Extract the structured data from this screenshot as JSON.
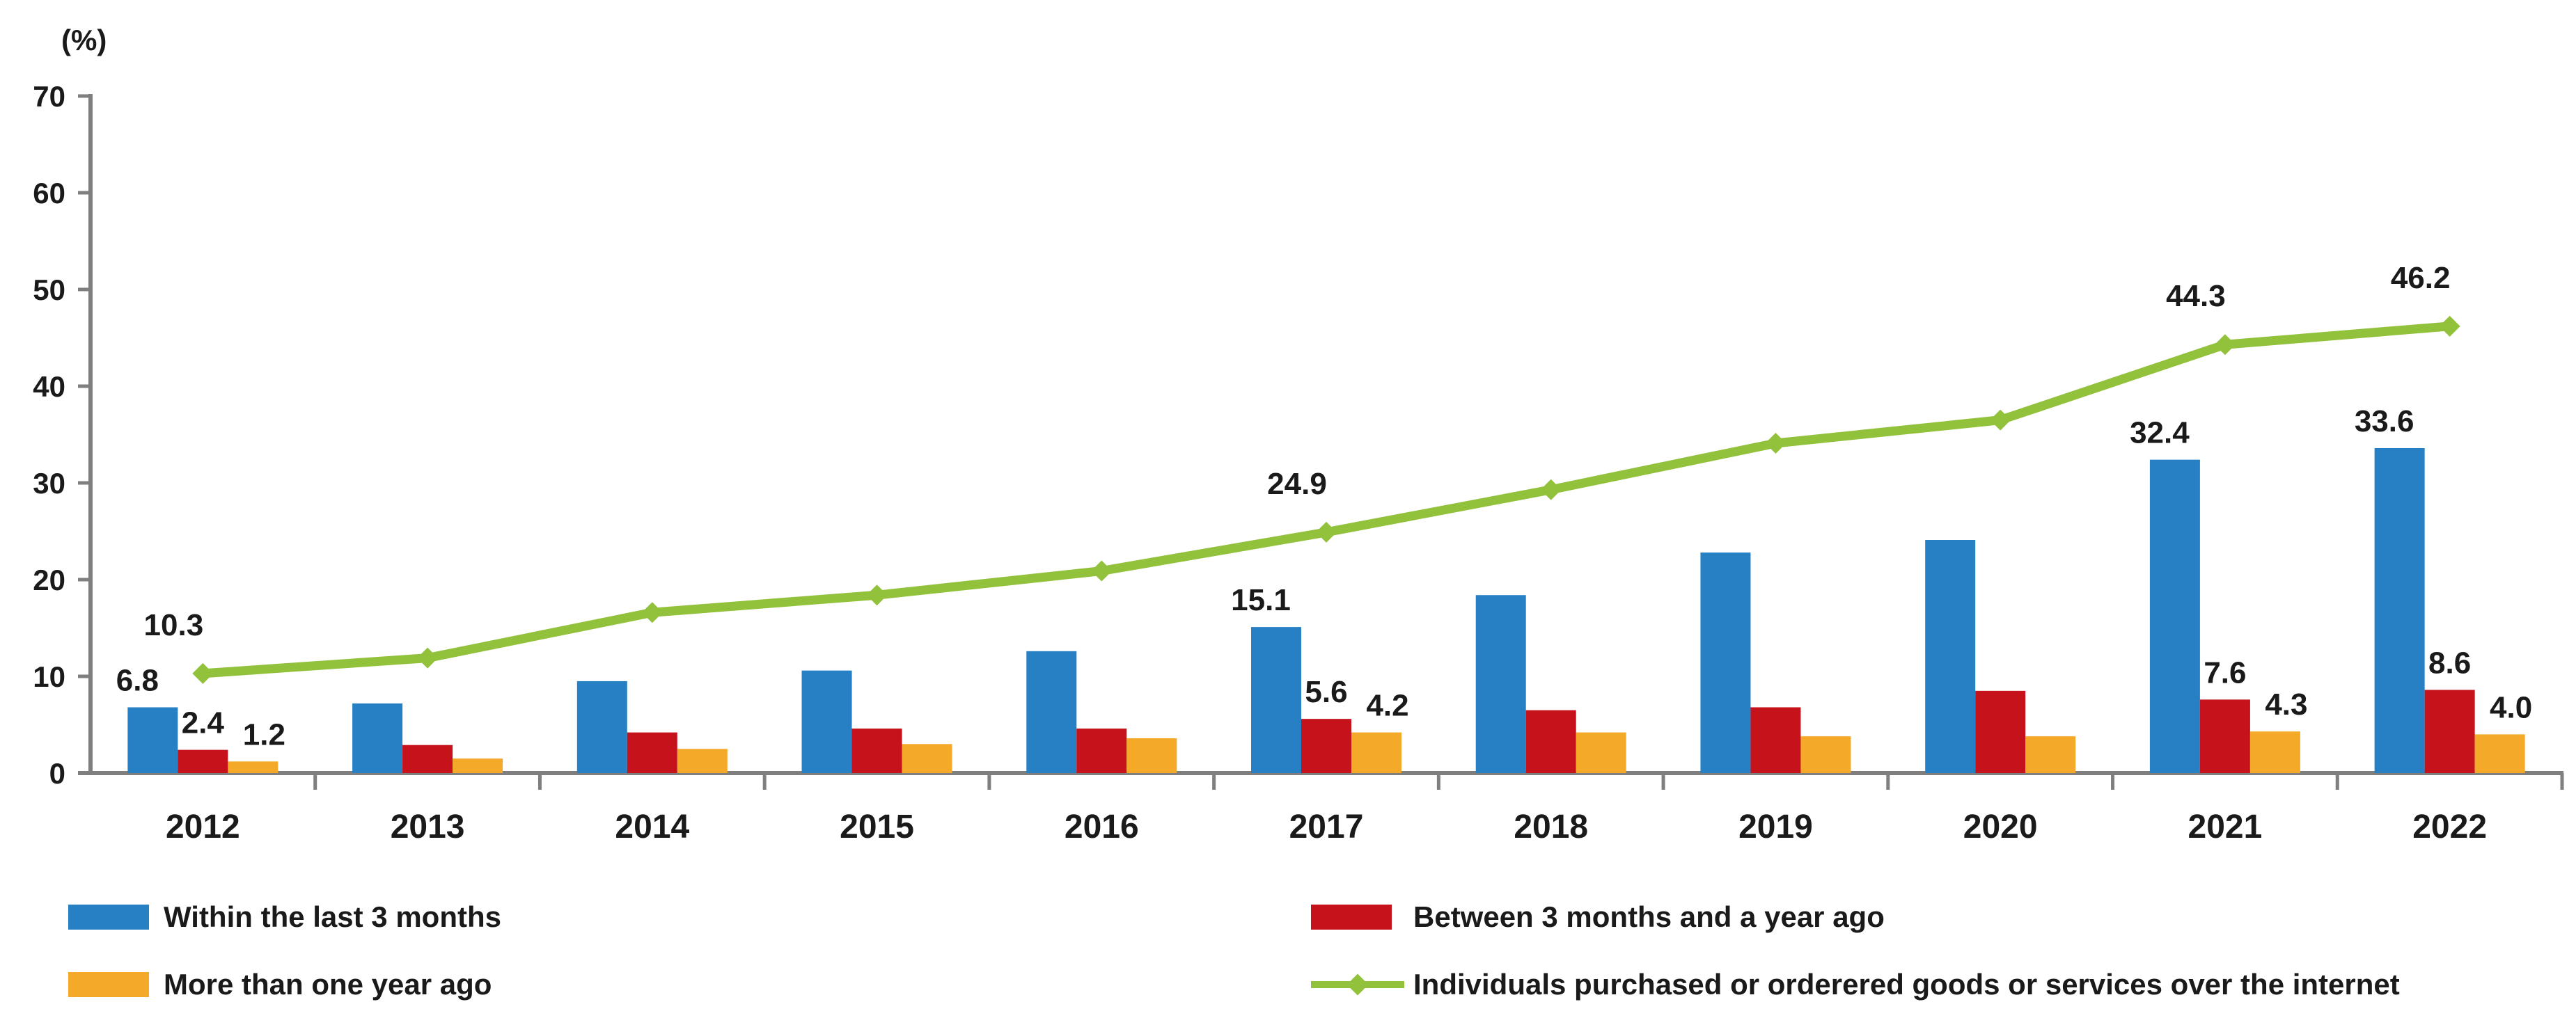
{
  "chart_data": {
    "type": "bar",
    "subtype": "grouped-bars-with-line-overlay",
    "title": "",
    "unit_label": "(%)",
    "xlabel": "",
    "ylabel": "(%)",
    "ylim": [
      0,
      70
    ],
    "y_ticks": [
      0,
      10,
      20,
      30,
      40,
      50,
      60,
      70
    ],
    "grid": false,
    "legend_position": "bottom",
    "categories": [
      "2012",
      "2013",
      "2014",
      "2015",
      "2016",
      "2017",
      "2018",
      "2019",
      "2020",
      "2021",
      "2022"
    ],
    "series": [
      {
        "name": "Within the last 3 months",
        "key": "within-last-3-months",
        "type": "bar",
        "color": "#2780C3",
        "values": [
          6.8,
          7.2,
          9.5,
          10.6,
          12.6,
          15.1,
          18.4,
          22.8,
          24.1,
          32.4,
          33.6
        ]
      },
      {
        "name": "Between 3 months and a year ago",
        "key": "between-3-months-and-year",
        "type": "bar",
        "color": "#C5121B",
        "values": [
          2.4,
          2.9,
          4.2,
          4.6,
          4.6,
          5.6,
          6.5,
          6.8,
          8.5,
          7.6,
          8.6
        ]
      },
      {
        "name": "More than one year ago",
        "key": "more-than-one-year",
        "type": "bar",
        "color": "#F5A928",
        "values": [
          1.2,
          1.5,
          2.5,
          3.0,
          3.6,
          4.2,
          4.2,
          3.8,
          3.8,
          4.3,
          4.0
        ]
      },
      {
        "name": "Individuals purchased or orderered goods or services over the internet",
        "key": "individuals-purchased-over-internet",
        "type": "line",
        "color": "#92C13C",
        "marker": "diamond",
        "values": [
          10.3,
          11.9,
          16.6,
          18.4,
          20.9,
          24.9,
          29.3,
          34.1,
          36.5,
          44.3,
          46.2
        ]
      }
    ],
    "labeled_category_indices": [
      0,
      5,
      9,
      10
    ],
    "shown_data_labels": {
      "2012": {
        "within-last-3-months": "6.8",
        "between-3-months-and-year": "2.4",
        "more-than-one-year": "1.2",
        "individuals-purchased-over-internet": "10.3"
      },
      "2017": {
        "within-last-3-months": "15.1",
        "between-3-months-and-year": "5.6",
        "more-than-one-year": "4.2",
        "individuals-purchased-over-internet": "24.9"
      },
      "2021": {
        "within-last-3-months": "32.4",
        "between-3-months-and-year": "7.6",
        "more-than-one-year": "4.3",
        "individuals-purchased-over-internet": "44.3"
      },
      "2022": {
        "within-last-3-months": "33.6",
        "between-3-months-and-year": "8.6",
        "more-than-one-year": "4.0",
        "individuals-purchased-over-internet": "46.2"
      }
    },
    "colors": {
      "axis": "#7F7F7F",
      "text": "#1A1A1A",
      "background": "#FFFFFF"
    }
  }
}
